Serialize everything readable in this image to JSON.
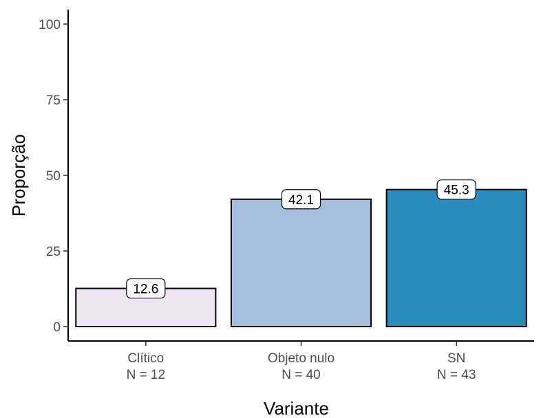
{
  "chart_data": {
    "type": "bar",
    "categories": [
      "Clítico\nN = 12",
      "Objeto nulo\nN = 40",
      "SN\nN = 43"
    ],
    "values": [
      12.6,
      42.1,
      45.3
    ],
    "data_labels": [
      "12.6",
      "42.1",
      "45.3"
    ],
    "colors": [
      "#ece7f2",
      "#a6bddb",
      "#2b8cbe"
    ],
    "xlabel": "Variante",
    "ylabel": "Proporção",
    "ylim": [
      0,
      100
    ],
    "yticks": [
      0,
      25,
      50,
      75,
      100
    ],
    "grid": false,
    "legend": "none"
  }
}
